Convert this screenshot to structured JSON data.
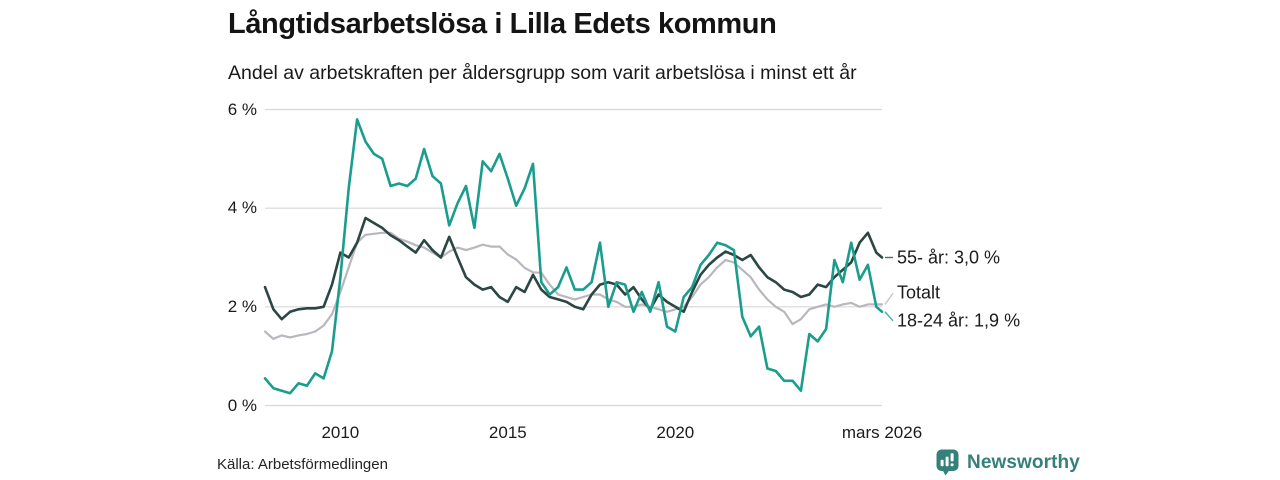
{
  "header": {
    "title": "Långtidsarbetslösa i Lilla Edets kommun",
    "subtitle": "Andel av arbetskraften per åldersgrupp som varit arbetslösa i minst ett år"
  },
  "footer": {
    "source": "Källa: Arbetsförmedlingen",
    "brand": "Newsworthy"
  },
  "colors": {
    "series_55": "#2b4743",
    "series_total": "#b8b7bd",
    "series_18_24": "#1a9d8d",
    "gridline": "#d8d8d8",
    "brand_teal": "#35807b",
    "text": "#1a1a1a"
  },
  "chart_data": {
    "type": "line",
    "title": "Långtidsarbetslösa i Lilla Edets kommun",
    "subtitle": "Andel av arbetskraften per åldersgrupp som varit arbetslösa i minst ett år",
    "grid": "horizontal",
    "legend_position": "right-end-labels",
    "xlim": [
      2007.75,
      2026.17
    ],
    "ylim": [
      0,
      6
    ],
    "y_ticks": [
      {
        "value": 0,
        "label": "0 %"
      },
      {
        "value": 2,
        "label": "2 %"
      },
      {
        "value": 4,
        "label": "4 %"
      },
      {
        "value": 6,
        "label": "6 %"
      }
    ],
    "x_ticks": [
      {
        "value": 2010,
        "label": "2010"
      },
      {
        "value": 2015,
        "label": "2015"
      },
      {
        "value": 2020,
        "label": "2020"
      },
      {
        "value": 2026.17,
        "label": "mars 2026"
      }
    ],
    "x": [
      2007.75,
      2008,
      2008.25,
      2008.5,
      2008.75,
      2009,
      2009.25,
      2009.5,
      2009.75,
      2010,
      2010.25,
      2010.5,
      2010.75,
      2011,
      2011.25,
      2011.5,
      2011.75,
      2012,
      2012.25,
      2012.5,
      2012.75,
      2013,
      2013.25,
      2013.5,
      2013.75,
      2014,
      2014.25,
      2014.5,
      2014.75,
      2015,
      2015.25,
      2015.5,
      2015.75,
      2016,
      2016.25,
      2016.5,
      2016.75,
      2017,
      2017.25,
      2017.5,
      2017.75,
      2018,
      2018.25,
      2018.5,
      2018.75,
      2019,
      2019.25,
      2019.5,
      2019.75,
      2020,
      2020.25,
      2020.5,
      2020.75,
      2021,
      2021.25,
      2021.5,
      2021.75,
      2022,
      2022.25,
      2022.5,
      2022.75,
      2023,
      2023.25,
      2023.5,
      2023.75,
      2024,
      2024.25,
      2024.5,
      2024.75,
      2025,
      2025.25,
      2025.5,
      2025.75,
      2026,
      2026.17
    ],
    "series": [
      {
        "name": "55- år",
        "end_label": "55- år: 3,0 %",
        "end_value_text": "3,0 %",
        "color": "#2b4743",
        "width": 2.6,
        "values": [
          2.4,
          1.95,
          1.75,
          1.9,
          1.95,
          1.97,
          1.97,
          2.0,
          2.45,
          3.1,
          3.0,
          3.3,
          3.8,
          3.7,
          3.6,
          3.45,
          3.35,
          3.22,
          3.1,
          3.35,
          3.15,
          3.0,
          3.42,
          3.0,
          2.6,
          2.45,
          2.35,
          2.4,
          2.2,
          2.1,
          2.4,
          2.3,
          2.65,
          2.35,
          2.2,
          2.15,
          2.1,
          2.0,
          1.95,
          2.25,
          2.45,
          2.5,
          2.45,
          2.25,
          2.4,
          2.15,
          1.95,
          2.25,
          2.1,
          2.0,
          1.9,
          2.3,
          2.65,
          2.85,
          3.0,
          3.12,
          3.05,
          2.95,
          3.05,
          2.8,
          2.6,
          2.5,
          2.35,
          2.3,
          2.2,
          2.25,
          2.45,
          2.4,
          2.6,
          2.75,
          2.9,
          3.3,
          3.5,
          3.1,
          3.0
        ]
      },
      {
        "name": "Totalt",
        "end_label": "Totalt",
        "end_value_text": "",
        "color": "#b8b7bd",
        "width": 2.2,
        "values": [
          1.5,
          1.35,
          1.42,
          1.38,
          1.42,
          1.45,
          1.5,
          1.62,
          1.85,
          2.3,
          2.8,
          3.3,
          3.46,
          3.48,
          3.5,
          3.5,
          3.38,
          3.32,
          3.25,
          3.2,
          3.1,
          3.0,
          3.12,
          3.2,
          3.15,
          3.2,
          3.26,
          3.22,
          3.22,
          3.06,
          2.96,
          2.79,
          2.7,
          2.69,
          2.45,
          2.25,
          2.2,
          2.15,
          2.2,
          2.25,
          2.25,
          2.15,
          2.1,
          2.0,
          2.0,
          2.05,
          2.0,
          1.95,
          1.9,
          1.95,
          2.0,
          2.2,
          2.45,
          2.6,
          2.8,
          2.95,
          2.9,
          2.75,
          2.6,
          2.35,
          2.15,
          2.0,
          1.9,
          1.65,
          1.75,
          1.95,
          2.0,
          2.05,
          2.0,
          2.05,
          2.08,
          2.0,
          2.05,
          2.05,
          2.05
        ]
      },
      {
        "name": "18-24 år",
        "end_label": "18-24 år: 1,9 %",
        "end_value_text": "1,9 %",
        "color": "#1a9d8d",
        "width": 2.6,
        "values": [
          0.55,
          0.35,
          0.3,
          0.25,
          0.45,
          0.4,
          0.65,
          0.55,
          1.1,
          2.6,
          4.4,
          5.8,
          5.35,
          5.1,
          5.0,
          4.45,
          4.5,
          4.45,
          4.6,
          5.2,
          4.65,
          4.5,
          3.65,
          4.1,
          4.45,
          3.6,
          4.95,
          4.75,
          5.1,
          4.6,
          4.05,
          4.4,
          4.9,
          2.5,
          2.25,
          2.4,
          2.8,
          2.35,
          2.35,
          2.5,
          3.3,
          2.0,
          2.5,
          2.45,
          1.9,
          2.3,
          1.9,
          2.5,
          1.6,
          1.5,
          2.2,
          2.4,
          2.85,
          3.05,
          3.3,
          3.25,
          3.15,
          1.8,
          1.4,
          1.6,
          0.75,
          0.7,
          0.5,
          0.5,
          0.3,
          1.45,
          1.3,
          1.55,
          2.95,
          2.5,
          3.3,
          2.55,
          2.85,
          2.0,
          1.9
        ]
      }
    ]
  }
}
